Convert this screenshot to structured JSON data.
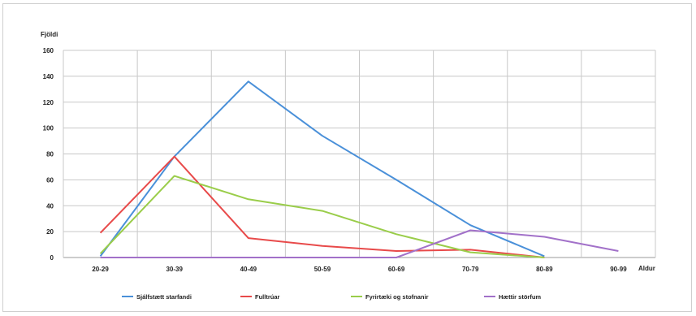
{
  "chart_data": {
    "type": "line",
    "ylabel": "Fjöldi",
    "xlabel": "Aldur",
    "categories": [
      "20-29",
      "30-39",
      "40-49",
      "50-59",
      "60-69",
      "70-79",
      "80-89",
      "90-99"
    ],
    "yticks": [
      "0",
      "20",
      "40",
      "60",
      "80",
      "100",
      "120",
      "140",
      "160"
    ],
    "ylim": [
      0,
      160
    ],
    "grid": true,
    "legend_position": "bottom",
    "series": [
      {
        "name": "Sjálfstætt starfandi",
        "color": "#4a90d9",
        "values": [
          1,
          78,
          136,
          94,
          60,
          25,
          1,
          null
        ]
      },
      {
        "name": "Fulltrúar",
        "color": "#e84a4a",
        "values": [
          19,
          78,
          15,
          9,
          5,
          6,
          0,
          null
        ]
      },
      {
        "name": "Fyrirtæki og stofnanir",
        "color": "#9acd4a",
        "values": [
          3,
          63,
          45,
          36,
          18,
          4,
          0,
          null
        ]
      },
      {
        "name": "Hættir störfum",
        "color": "#a271c9",
        "values": [
          0,
          0,
          0,
          0,
          0,
          21,
          16,
          5
        ]
      }
    ]
  }
}
